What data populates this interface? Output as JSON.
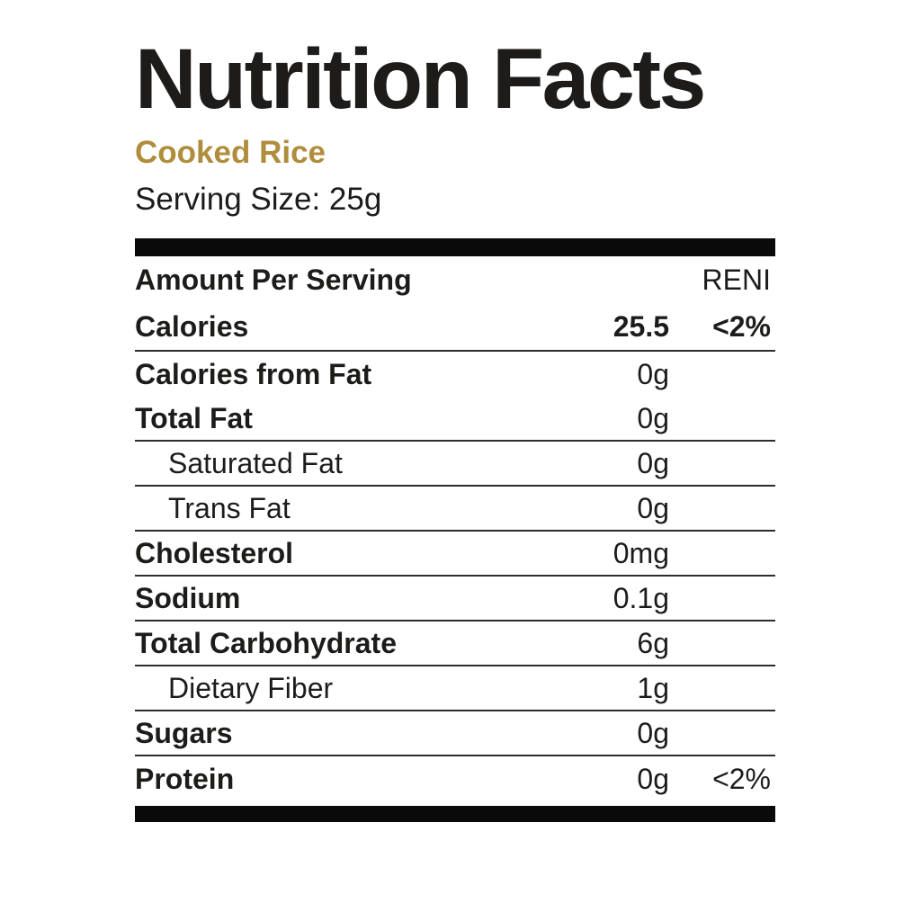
{
  "header": {
    "title": "Nutrition Facts",
    "product_name": "Cooked Rice",
    "serving_size": "Serving Size: 25g"
  },
  "table": {
    "column_header_left": "Amount Per Serving",
    "column_header_right": "RENI",
    "rows": [
      {
        "label": "Calories",
        "value": "25.5",
        "pct": "<2%"
      },
      {
        "label": "Calories from Fat",
        "value": "0g"
      },
      {
        "label": "Total Fat",
        "value": "0g"
      },
      {
        "label": "Saturated Fat",
        "value": "0g"
      },
      {
        "label": "Trans Fat",
        "value": "0g"
      },
      {
        "label": "Cholesterol",
        "value": "0mg"
      },
      {
        "label": "Sodium",
        "value": "0.1g"
      },
      {
        "label": "Total Carbohydrate",
        "value": "6g"
      },
      {
        "label": "Dietary Fiber",
        "value": "1g"
      },
      {
        "label": "Sugars",
        "value": "0g"
      },
      {
        "label": "Protein",
        "value": "0g",
        "pct": "<2%"
      }
    ]
  },
  "colors": {
    "accent_gold": "#AF8D3C",
    "text": "#1D1C1A",
    "bar_black": "#0B0A0A"
  }
}
